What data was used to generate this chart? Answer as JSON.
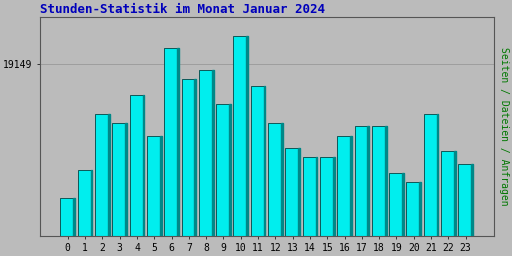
{
  "title": "Stunden-Statistik im Monat Januar 2024",
  "ylabel": "Seiten / Dateien / Anfragen",
  "xlabel_ticks": [
    0,
    1,
    2,
    3,
    4,
    5,
    6,
    7,
    8,
    9,
    10,
    11,
    12,
    13,
    14,
    15,
    16,
    17,
    18,
    19,
    20,
    21,
    22,
    23
  ],
  "ytick_label": "19149",
  "ytick_value": 19149,
  "ymin": 18600,
  "ymax": 19300,
  "values": [
    18720,
    18810,
    18990,
    18960,
    19050,
    18920,
    19200,
    19100,
    19130,
    19020,
    19240,
    19080,
    18960,
    18880,
    18850,
    18850,
    18920,
    18950,
    18950,
    18800,
    18770,
    18990,
    18870,
    18830
  ],
  "bar_fill_color": "#00EEEE",
  "bar_edge_color": "#004444",
  "bar_shade_color": "#008888",
  "title_color": "#0000BB",
  "ylabel_color": "#007700",
  "background_color": "#BBBBBB",
  "plot_bg_color": "#BBBBBB",
  "grid_color": "#999999",
  "outer_bg": "#BBBBBB",
  "bar_width": 0.85,
  "title_fontsize": 9,
  "tick_fontsize": 7,
  "ylabel_fontsize": 7
}
